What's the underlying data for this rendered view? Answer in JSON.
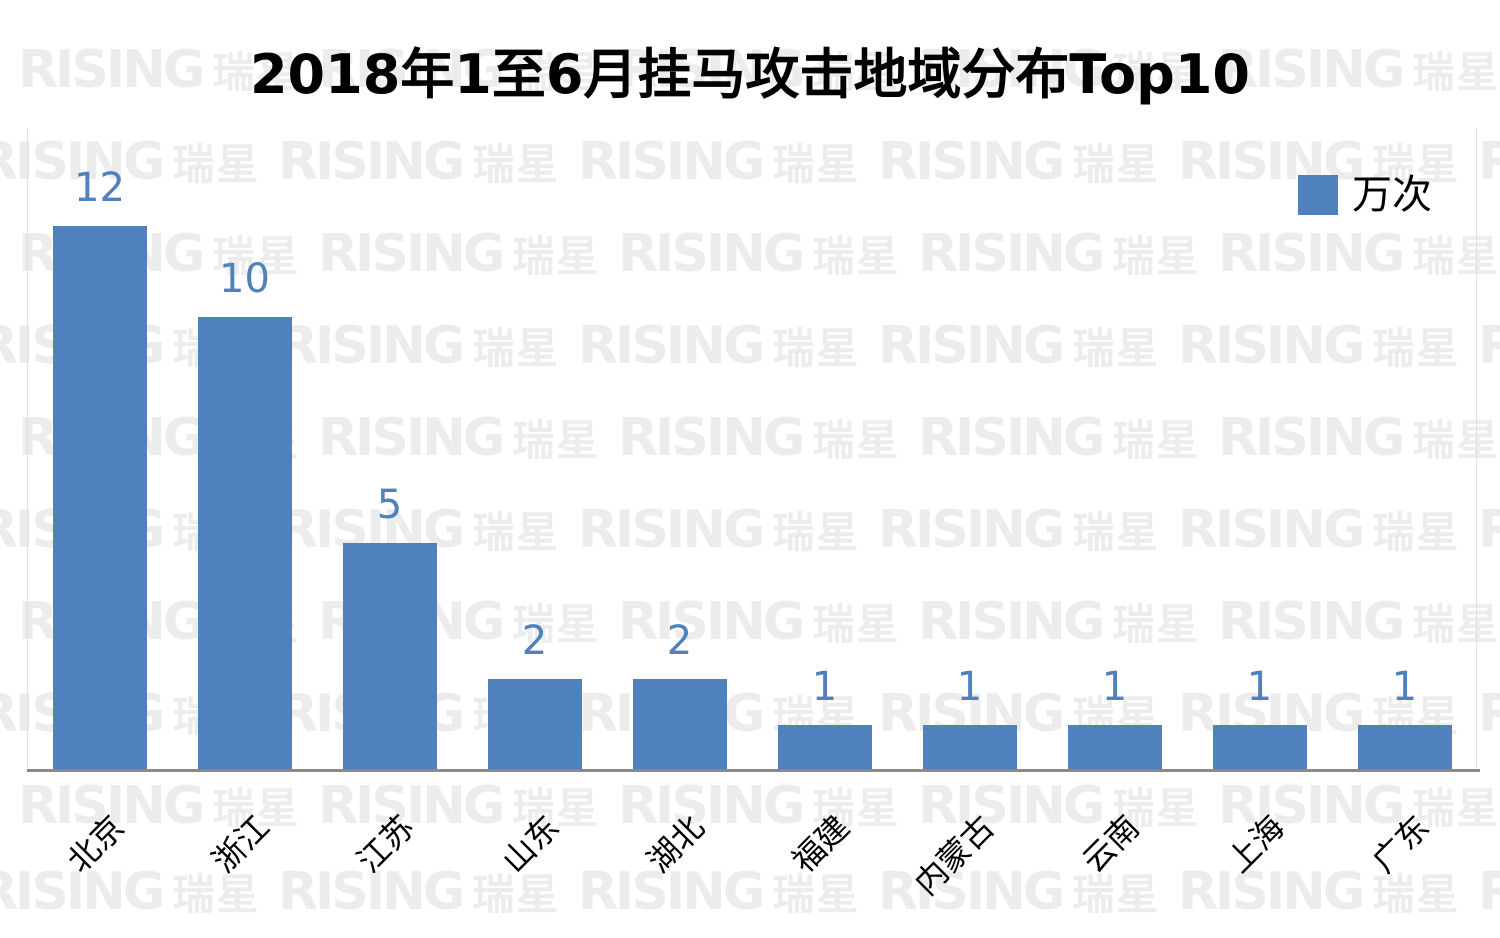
{
  "title": "2018年1至6月挂马攻击地域分布Top10",
  "legend": {
    "label": "万次",
    "swatch_color": "#4F81BD"
  },
  "watermark": {
    "latin": "RISING",
    "cjk": "瑞星",
    "color": "#ECECEC"
  },
  "chart_data": {
    "type": "bar",
    "title": "2018年1至6月挂马攻击地域分布Top10",
    "categories": [
      "北京",
      "浙江",
      "江苏",
      "山东",
      "湖北",
      "福建",
      "内蒙古",
      "云南",
      "上海",
      "广东"
    ],
    "values": [
      12,
      10,
      5,
      2,
      2,
      1,
      1,
      1,
      1,
      1
    ],
    "series_name": "万次",
    "unit": "万次",
    "data_labels_shown": true,
    "bar_color": "#4F81BD",
    "value_label_color": "#4F81BD",
    "axis_line_color": "#8A8A8A",
    "xlabel": "",
    "ylabel": "",
    "ylim": [
      0,
      14.2
    ],
    "grid": false,
    "legend_position": "top-right",
    "x_tick_rotation_deg": 45
  }
}
